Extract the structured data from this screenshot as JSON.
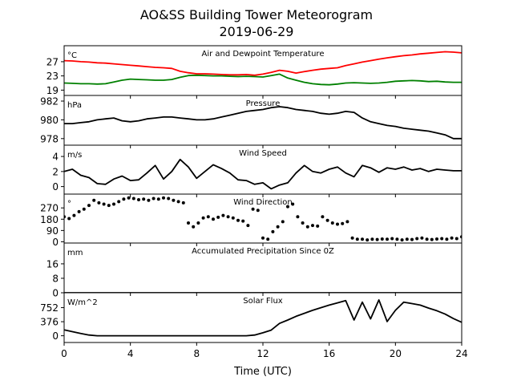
{
  "figure": {
    "title_line1": "AO&SS Building Tower Meteorogram",
    "title_line2": "2019-06-29",
    "xlabel": "Time (UTC)"
  },
  "colors": {
    "temperature": "#ff0000",
    "dewpoint": "#008000",
    "line": "#000000"
  },
  "chart_data": [
    {
      "type": "line",
      "title": "Air and Dewpoint Temperature",
      "unit": "°C",
      "xlim": [
        0,
        24
      ],
      "ylim": [
        17.5,
        31.5
      ],
      "yticks": [
        19,
        23,
        27
      ],
      "series": [
        {
          "color": "#ff0000",
          "x": [
            0,
            0.5,
            1,
            1.5,
            2,
            2.5,
            3,
            3.5,
            4,
            4.5,
            5,
            5.5,
            6,
            6.5,
            7,
            7.5,
            8,
            8.5,
            9,
            9.5,
            10,
            10.5,
            11,
            11.5,
            12,
            12.5,
            13,
            13.5,
            14,
            14.5,
            15,
            15.5,
            16,
            16.5,
            17,
            17.5,
            18,
            18.5,
            19,
            19.5,
            20,
            20.5,
            21,
            21.5,
            22,
            22.5,
            23,
            23.5,
            24
          ],
          "values": [
            27.3,
            27.2,
            27.0,
            26.9,
            26.7,
            26.6,
            26.4,
            26.2,
            26.0,
            25.8,
            25.6,
            25.4,
            25.3,
            25.1,
            24.3,
            23.9,
            23.6,
            23.6,
            23.5,
            23.4,
            23.3,
            23.3,
            23.4,
            23.2,
            23.5,
            24.0,
            24.6,
            24.3,
            23.8,
            24.2,
            24.6,
            24.9,
            25.1,
            25.3,
            25.9,
            26.4,
            26.9,
            27.3,
            27.7,
            28.1,
            28.4,
            28.7,
            28.9,
            29.2,
            29.4,
            29.6,
            29.8,
            29.7,
            29.5
          ]
        },
        {
          "color": "#008000",
          "x": [
            0,
            0.5,
            1,
            1.5,
            2,
            2.5,
            3,
            3.5,
            4,
            4.5,
            5,
            5.5,
            6,
            6.5,
            7,
            7.5,
            8,
            8.5,
            9,
            9.5,
            10,
            10.5,
            11,
            11.5,
            12,
            12.5,
            13,
            13.5,
            14,
            14.5,
            15,
            15.5,
            16,
            16.5,
            17,
            17.5,
            18,
            18.5,
            19,
            19.5,
            20,
            20.5,
            21,
            21.5,
            22,
            22.5,
            23,
            23.5,
            24
          ],
          "values": [
            21.0,
            20.9,
            20.8,
            20.8,
            20.7,
            20.8,
            21.3,
            21.8,
            22.1,
            22.0,
            21.9,
            21.8,
            21.8,
            22.0,
            22.6,
            23.1,
            23.2,
            23.1,
            23.0,
            23.0,
            22.9,
            22.8,
            22.9,
            22.8,
            22.7,
            23.1,
            23.5,
            22.4,
            21.8,
            21.2,
            20.8,
            20.6,
            20.5,
            20.7,
            21.0,
            21.1,
            21.0,
            20.9,
            21.0,
            21.2,
            21.5,
            21.6,
            21.7,
            21.6,
            21.4,
            21.5,
            21.3,
            21.2,
            21.2
          ]
        }
      ]
    },
    {
      "type": "line",
      "title": "Pressure",
      "unit": "hPa",
      "xlim": [
        0,
        24
      ],
      "ylim": [
        977.3,
        982.6
      ],
      "yticks": [
        978,
        980,
        982
      ],
      "series": [
        {
          "color": "#000000",
          "x": [
            0,
            0.5,
            1,
            1.5,
            2,
            2.5,
            3,
            3.5,
            4,
            4.5,
            5,
            5.5,
            6,
            6.5,
            7,
            7.5,
            8,
            8.5,
            9,
            9.5,
            10,
            10.5,
            11,
            11.5,
            12,
            12.5,
            13,
            13.5,
            14,
            14.5,
            15,
            15.5,
            16,
            16.5,
            17,
            17.5,
            18,
            18.5,
            19,
            19.5,
            20,
            20.5,
            21,
            21.5,
            22,
            22.5,
            23,
            23.5,
            24
          ],
          "values": [
            979.6,
            979.6,
            979.7,
            979.8,
            980.0,
            980.1,
            980.2,
            979.9,
            979.8,
            979.9,
            980.1,
            980.2,
            980.3,
            980.3,
            980.2,
            980.1,
            980.0,
            980.0,
            980.1,
            980.3,
            980.5,
            980.7,
            980.9,
            981.0,
            981.1,
            981.3,
            981.4,
            981.3,
            981.1,
            981.0,
            980.9,
            980.7,
            980.6,
            980.7,
            980.9,
            980.8,
            980.2,
            979.8,
            979.6,
            979.4,
            979.3,
            979.1,
            979.0,
            978.9,
            978.8,
            978.6,
            978.4,
            978.0,
            978.0
          ]
        }
      ]
    },
    {
      "type": "line",
      "title": "Wind Speed",
      "unit": "m/s",
      "xlim": [
        0,
        24
      ],
      "ylim": [
        -1.0,
        5.5
      ],
      "yticks": [
        0,
        2,
        4
      ],
      "series": [
        {
          "color": "#000000",
          "x": [
            0,
            0.5,
            1,
            1.5,
            2,
            2.5,
            3,
            3.5,
            4,
            4.5,
            5,
            5.5,
            6,
            6.5,
            7,
            7.5,
            8,
            8.5,
            9,
            9.5,
            10,
            10.5,
            11,
            11.5,
            12,
            12.5,
            13,
            13.5,
            14,
            14.5,
            15,
            15.5,
            16,
            16.5,
            17,
            17.5,
            18,
            18.5,
            19,
            19.5,
            20,
            20.5,
            21,
            21.5,
            22,
            22.5,
            23,
            23.5,
            24
          ],
          "values": [
            2.0,
            2.3,
            1.5,
            1.2,
            0.4,
            0.3,
            1.0,
            1.4,
            0.8,
            0.9,
            1.8,
            2.8,
            1.0,
            2.0,
            3.6,
            2.6,
            1.1,
            2.0,
            2.9,
            2.4,
            1.8,
            0.9,
            0.8,
            0.3,
            0.5,
            -0.3,
            0.2,
            0.5,
            1.8,
            2.8,
            2.0,
            1.8,
            2.3,
            2.6,
            1.8,
            1.3,
            2.8,
            2.5,
            1.9,
            2.5,
            2.3,
            2.6,
            2.2,
            2.4,
            2.0,
            2.3,
            2.2,
            2.1,
            2.1
          ]
        }
      ]
    },
    {
      "type": "scatter",
      "title": "Wind Direction",
      "unit": "°",
      "xlim": [
        0,
        24
      ],
      "ylim": [
        -10,
        380
      ],
      "yticks": [
        0,
        90,
        180,
        270
      ],
      "series": [
        {
          "color": "#000000",
          "x": [
            0.0,
            0.3,
            0.6,
            0.9,
            1.2,
            1.5,
            1.8,
            2.1,
            2.4,
            2.7,
            3.0,
            3.3,
            3.6,
            3.9,
            4.2,
            4.5,
            4.8,
            5.1,
            5.4,
            5.7,
            6.0,
            6.3,
            6.6,
            6.9,
            7.2,
            7.5,
            7.8,
            8.1,
            8.4,
            8.7,
            9.0,
            9.3,
            9.6,
            9.9,
            10.2,
            10.5,
            10.8,
            11.1,
            11.4,
            11.7,
            12.0,
            12.3,
            12.6,
            12.9,
            13.2,
            13.5,
            13.8,
            14.1,
            14.4,
            14.7,
            15.0,
            15.3,
            15.6,
            15.9,
            16.2,
            16.5,
            16.8,
            17.1,
            17.4,
            17.7,
            18.0,
            18.3,
            18.6,
            18.9,
            19.2,
            19.5,
            19.8,
            20.1,
            20.4,
            20.7,
            21.0,
            21.3,
            21.6,
            21.9,
            22.2,
            22.5,
            22.8,
            23.1,
            23.4,
            23.7,
            24.0
          ],
          "values": [
            200,
            185,
            210,
            240,
            260,
            290,
            330,
            310,
            300,
            290,
            300,
            320,
            340,
            350,
            345,
            335,
            340,
            330,
            345,
            340,
            350,
            345,
            330,
            320,
            310,
            150,
            120,
            150,
            190,
            200,
            180,
            195,
            210,
            200,
            190,
            170,
            165,
            130,
            260,
            250,
            30,
            20,
            80,
            120,
            160,
            280,
            300,
            200,
            150,
            120,
            130,
            125,
            200,
            170,
            150,
            140,
            145,
            160,
            30,
            20,
            20,
            15,
            20,
            18,
            22,
            20,
            25,
            20,
            15,
            20,
            18,
            25,
            30,
            20,
            18,
            22,
            25,
            20,
            30,
            25,
            40
          ]
        }
      ]
    },
    {
      "type": "line",
      "title": "Accumulated Precipitation Since 0Z",
      "unit": "mm",
      "xlim": [
        0,
        24
      ],
      "ylim": [
        0,
        27.5
      ],
      "yticks": [
        0,
        8,
        16
      ],
      "series": [
        {
          "color": "#000000",
          "x": [
            0,
            24
          ],
          "values": [
            0,
            0
          ]
        }
      ]
    },
    {
      "type": "line",
      "title": "Solar Flux",
      "unit": "W/m^2",
      "xlim": [
        0,
        24
      ],
      "ylim": [
        -180,
        1150
      ],
      "yticks": [
        0,
        376,
        752
      ],
      "series": [
        {
          "color": "#000000",
          "x": [
            0,
            0.5,
            1,
            1.5,
            2,
            2.5,
            3,
            3.5,
            4,
            4.5,
            5,
            5.5,
            6,
            6.5,
            7,
            7.5,
            8,
            8.5,
            9,
            9.5,
            10,
            10.5,
            11,
            11.5,
            12,
            12.5,
            13,
            13.5,
            14,
            14.5,
            15,
            15.5,
            16,
            16.5,
            17,
            17.5,
            18,
            18.5,
            19,
            19.5,
            20,
            20.5,
            21,
            21.5,
            22,
            22.5,
            23,
            23.5,
            24
          ],
          "values": [
            160,
            110,
            60,
            20,
            0,
            0,
            0,
            0,
            0,
            0,
            0,
            0,
            0,
            0,
            0,
            0,
            0,
            0,
            0,
            0,
            0,
            0,
            0,
            20,
            80,
            150,
            330,
            420,
            520,
            600,
            680,
            750,
            820,
            880,
            940,
            420,
            900,
            450,
            960,
            380,
            680,
            900,
            860,
            820,
            740,
            670,
            580,
            460,
            360
          ]
        }
      ]
    }
  ],
  "xticks": [
    "0",
    "4",
    "8",
    "12",
    "16",
    "20",
    "24"
  ]
}
